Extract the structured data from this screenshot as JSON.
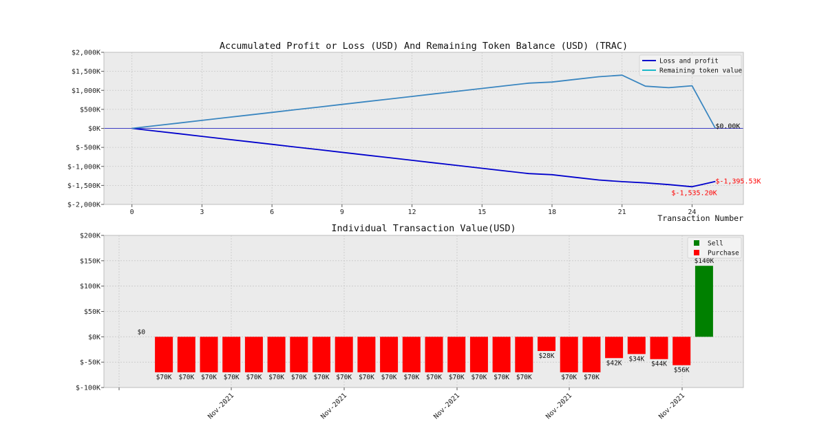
{
  "chart_data": [
    {
      "type": "line",
      "title": "Accumulated Profit or Loss (USD) And Remaining Token Balance (USD) (TRAC)",
      "xlabel": "Transaction Number",
      "ylabel": "",
      "xlim": [
        -1.2,
        26.2
      ],
      "ylim": [
        -2000,
        2000
      ],
      "xticks": [
        0,
        3,
        6,
        9,
        12,
        15,
        18,
        21,
        24
      ],
      "yticks": [
        -2000,
        -1500,
        -1000,
        -500,
        0,
        500,
        1000,
        1500,
        2000
      ],
      "ytick_labels": [
        "$-2,000K",
        "$-1,500K",
        "$-1,000K",
        "$-500K",
        "$0K",
        "$500K",
        "$1,000K",
        "$1,500K",
        "$2,000K"
      ],
      "grid": true,
      "legend_position": "top-right",
      "x": [
        0,
        1,
        2,
        3,
        4,
        5,
        6,
        7,
        8,
        9,
        10,
        11,
        12,
        13,
        14,
        15,
        16,
        17,
        18,
        19,
        20,
        21,
        22,
        23,
        24,
        25
      ],
      "series": [
        {
          "name": "Loss and profit",
          "color": "#0000cc",
          "values": [
            0,
            -70,
            -140,
            -210,
            -280,
            -350,
            -420,
            -490,
            -560,
            -630,
            -700,
            -770,
            -840,
            -910,
            -980,
            -1050,
            -1120,
            -1190,
            -1218,
            -1288,
            -1358,
            -1400,
            -1434,
            -1478,
            -1535.2,
            -1395.53
          ]
        },
        {
          "name": "Remaining token value",
          "color": "#3a86c0",
          "legend_color": "#1cb8c8",
          "values": [
            0,
            70,
            140,
            210,
            280,
            350,
            420,
            490,
            560,
            630,
            700,
            770,
            840,
            910,
            980,
            1050,
            1120,
            1190,
            1218,
            1288,
            1358,
            1400,
            1110,
            1070,
            1120,
            0
          ]
        }
      ],
      "annotations": [
        {
          "x": 25,
          "y": 0,
          "text": "$0.00K",
          "color": "#000000"
        },
        {
          "x": 25,
          "y": -1395.53,
          "text": "$-1,395.53K",
          "color": "#ff0000"
        },
        {
          "x": 24,
          "y": -1535.2,
          "text": "$-1,535.20K",
          "color": "#ff0000"
        }
      ]
    },
    {
      "type": "bar",
      "title": "Individual Transaction Value(USD)",
      "xlabel": "",
      "ylabel": "",
      "ylim": [
        -100,
        200
      ],
      "yticks": [
        -100,
        -50,
        0,
        50,
        100,
        150,
        200
      ],
      "ytick_labels": [
        "$-100K",
        "$-50K",
        "$0K",
        "$50K",
        "$100K",
        "$150K",
        "$200K"
      ],
      "xtick_labels": [
        "Nov-2021",
        "Nov-2021",
        "Nov-2021",
        "Nov-2021",
        "Nov-2021"
      ],
      "grid": true,
      "legend_position": "top-right",
      "legend": [
        {
          "name": "Sell",
          "color": "#008000"
        },
        {
          "name": "Purchase",
          "color": "#ff0000"
        }
      ],
      "values": [
        0,
        -70,
        -70,
        -70,
        -70,
        -70,
        -70,
        -70,
        -70,
        -70,
        -70,
        -70,
        -70,
        -70,
        -70,
        -70,
        -70,
        -70,
        -28,
        -70,
        -70,
        -42,
        -34,
        -44,
        -56,
        140
      ],
      "labels": [
        "$0",
        "$70K",
        "$70K",
        "$70K",
        "$70K",
        "$70K",
        "$70K",
        "$70K",
        "$70K",
        "$70K",
        "$70K",
        "$70K",
        "$70K",
        "$70K",
        "$70K",
        "$70K",
        "$70K",
        "$70K",
        "$28K",
        "$70K",
        "$70K",
        "$42K",
        "$34K",
        "$44K",
        "$56K",
        "$140K"
      ]
    }
  ]
}
